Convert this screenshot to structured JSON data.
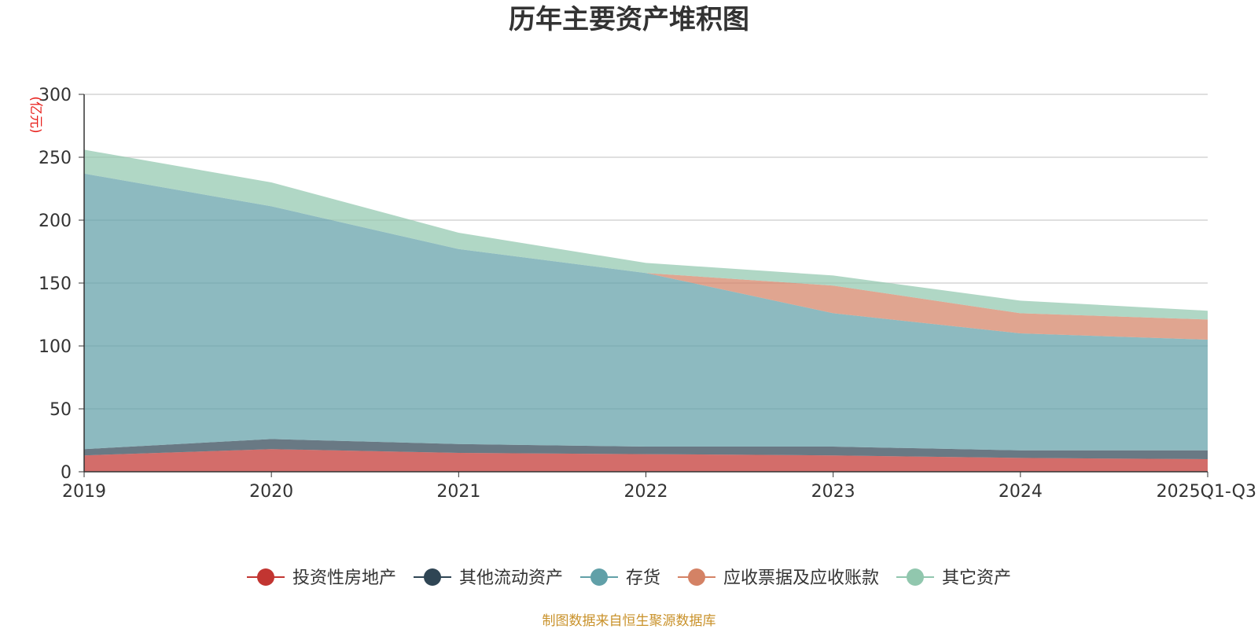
{
  "chart_data": {
    "type": "area",
    "stacked": true,
    "title": "历年主要资产堆积图",
    "ylabel": "(亿元)",
    "xlabel": "",
    "ylim": [
      0,
      300
    ],
    "yticks": [
      0,
      50,
      100,
      150,
      200,
      250,
      300
    ],
    "categories": [
      "2019",
      "2020",
      "2021",
      "2022",
      "2023",
      "2024",
      "2025Q1-Q3"
    ],
    "series": [
      {
        "name": "投资性房地产",
        "color": "#c23531",
        "values": [
          13,
          18,
          15,
          14,
          13,
          11,
          10
        ]
      },
      {
        "name": "其他流动资产",
        "color": "#2f4554",
        "values": [
          5,
          8,
          7,
          6,
          7,
          6,
          7
        ]
      },
      {
        "name": "存货",
        "color": "#61a0a8",
        "values": [
          219,
          185,
          155,
          138,
          106,
          93,
          88
        ]
      },
      {
        "name": "应收票据及应收账款",
        "color": "#d48265",
        "values": [
          0,
          0,
          0,
          0,
          22,
          16,
          16
        ]
      },
      {
        "name": "其它资产",
        "color": "#91c7ae",
        "values": [
          19,
          19,
          13,
          8,
          8,
          10,
          7
        ]
      }
    ],
    "grid": true,
    "legend_position": "bottom",
    "source": "制图数据来自恒生聚源数据库"
  }
}
